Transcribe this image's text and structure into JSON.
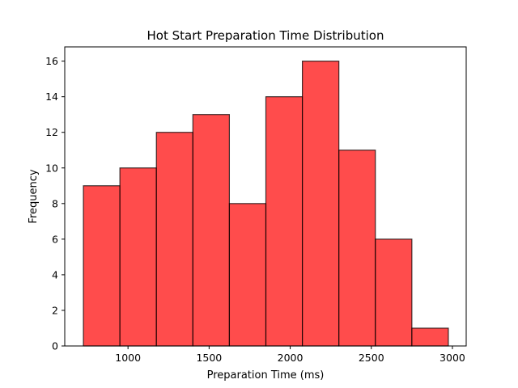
{
  "chart_data": {
    "type": "bar",
    "subtype": "histogram",
    "title": "Hot Start Preparation Time Distribution",
    "xlabel": "Preparation Time (ms)",
    "ylabel": "Frequency",
    "bins": [
      {
        "start": 725,
        "end": 950,
        "count": 9
      },
      {
        "start": 950,
        "end": 1175,
        "count": 10
      },
      {
        "start": 1175,
        "end": 1400,
        "count": 12
      },
      {
        "start": 1400,
        "end": 1625,
        "count": 13
      },
      {
        "start": 1625,
        "end": 1850,
        "count": 8
      },
      {
        "start": 1850,
        "end": 2075,
        "count": 14
      },
      {
        "start": 2075,
        "end": 2300,
        "count": 16
      },
      {
        "start": 2300,
        "end": 2525,
        "count": 11
      },
      {
        "start": 2525,
        "end": 2750,
        "count": 6
      },
      {
        "start": 2750,
        "end": 2975,
        "count": 1
      }
    ],
    "xlim": [
      610,
      3085
    ],
    "ylim": [
      0,
      16.8
    ],
    "xticks": [
      1000,
      1500,
      2000,
      2500,
      3000
    ],
    "xtick_labels": [
      "1000",
      "1500",
      "2000",
      "2500",
      "3000"
    ],
    "yticks": [
      0,
      2,
      4,
      6,
      8,
      10,
      12,
      14,
      16
    ],
    "ytick_labels": [
      "0",
      "2",
      "4",
      "6",
      "8",
      "10",
      "12",
      "14",
      "16"
    ],
    "grid": false,
    "colors": {
      "bar_fill": "#ff0000",
      "bar_edge": "#000000"
    }
  }
}
